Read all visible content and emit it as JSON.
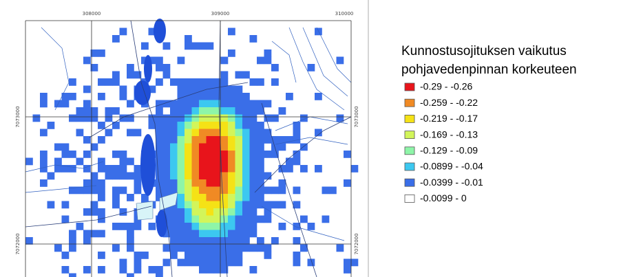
{
  "map": {
    "grid_labels": {
      "top": [
        "308000",
        "309000",
        "310000"
      ],
      "left": [
        "7073000",
        "7072000"
      ],
      "right": [
        "7073000",
        "7072000"
      ]
    }
  },
  "legend": {
    "title_lines": [
      "Kunnostusojituksen vaikutus",
      "pohjavedenpinnan korkeuteen"
    ],
    "items": [
      {
        "label": "-0.29 - -0.26",
        "color": "#e8141b"
      },
      {
        "label": "-0.259 - -0.22",
        "color": "#f08a24"
      },
      {
        "label": "-0.219 - -0.17",
        "color": "#f5e216"
      },
      {
        "label": "-0.169 - -0.13",
        "color": "#d2f55a"
      },
      {
        "label": "-0.129 - -0.09",
        "color": "#8ef5a8"
      },
      {
        "label": "-0.0899 - -0.04",
        "color": "#3cc8f0"
      },
      {
        "label": "-0.0399 - -0.01",
        "color": "#3a6ee8"
      },
      {
        "label": "-0.0099 - 0",
        "color": "#ffffff"
      }
    ]
  }
}
